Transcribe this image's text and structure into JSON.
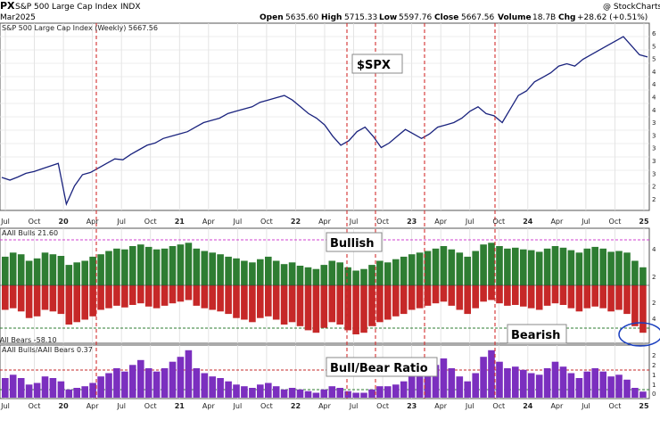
{
  "header": {
    "symbol": "PX",
    "name": "S&P 500 Large Cap Index",
    "exchange": "INDX",
    "date": "Mar2025",
    "open_label": "Open",
    "open": "5635.60",
    "high_label": "High",
    "high": "5715.33",
    "low_label": "Low",
    "low": "5597.76",
    "close_label": "Close",
    "close": "5667.56",
    "volume_label": "Volume",
    "volume": "18.7B",
    "chg_label": "Chg",
    "chg": "+28.62 (+0.51%)",
    "source": "@ StockCharts.com"
  },
  "chart_data": [
    {
      "type": "line",
      "panel_label": "S&P 500 Large Cap Index (Weekly) 5667.56",
      "callout": "$SPX",
      "x_ticks": [
        "Jul",
        "Oct",
        "20",
        "Apr",
        "Jul",
        "Oct",
        "21",
        "Apr",
        "Jul",
        "Oct",
        "22",
        "Apr",
        "Jul",
        "Oct",
        "23",
        "Apr",
        "Jul",
        "Oct",
        "24",
        "Apr",
        "Jul",
        "Oct",
        "25"
      ],
      "y_right_ticks": [
        "6",
        "5",
        "5",
        "4",
        "4",
        "4",
        "4",
        "3",
        "3",
        "3",
        "3",
        "3",
        "2",
        "2"
      ],
      "color": "#1a237e",
      "series": [
        {
          "values": [
            2990,
            2930,
            3000,
            3080,
            3120,
            3180,
            3240,
            3300,
            2400,
            2800,
            3050,
            3100,
            3200,
            3300,
            3400,
            3380,
            3500,
            3600,
            3700,
            3750,
            3850,
            3900,
            3950,
            4000,
            4100,
            4200,
            4250,
            4300,
            4400,
            4450,
            4500,
            4550,
            4650,
            4700,
            4750,
            4800,
            4700,
            4550,
            4400,
            4300,
            4150,
            3900,
            3700,
            3800,
            4000,
            4100,
            3900,
            3650,
            3750,
            3900,
            4050,
            3950,
            3850,
            3950,
            4100,
            4150,
            4200,
            4300,
            4450,
            4550,
            4400,
            4350,
            4200,
            4500,
            4800,
            4900,
            5100,
            5200,
            5300,
            5450,
            5500,
            5450,
            5600,
            5700,
            5800,
            5900,
            6000,
            6100,
            5900,
            5700,
            5650
          ]
        }
      ]
    },
    {
      "type": "bar",
      "panel_label": "AAII Bulls 21.60",
      "panel_label_bottom": "AAII Bears -58.10",
      "callout_top": "Bullish",
      "callout_bottom": "Bearish",
      "bull_color": "#2e7d32",
      "bear_color": "#c62828",
      "y_right_ticks": [
        "4",
        "2",
        "2",
        "4"
      ],
      "series": [
        {
          "name": "AAII Bulls",
          "values": [
            35,
            40,
            38,
            30,
            33,
            40,
            38,
            36,
            25,
            28,
            30,
            35,
            38,
            42,
            45,
            44,
            48,
            50,
            47,
            44,
            45,
            48,
            50,
            52,
            45,
            42,
            40,
            38,
            35,
            33,
            30,
            28,
            32,
            35,
            30,
            26,
            28,
            24,
            22,
            20,
            25,
            30,
            28,
            22,
            18,
            20,
            25,
            30,
            28,
            32,
            35,
            38,
            40,
            42,
            45,
            48,
            44,
            40,
            35,
            42,
            50,
            52,
            48,
            45,
            46,
            44,
            43,
            41,
            45,
            48,
            46,
            43,
            40,
            45,
            47,
            45,
            41,
            42,
            40,
            30,
            22
          ]
        },
        {
          "name": "AAII Bears",
          "values": [
            -30,
            -28,
            -32,
            -40,
            -38,
            -30,
            -32,
            -35,
            -48,
            -45,
            -42,
            -38,
            -30,
            -28,
            -25,
            -27,
            -24,
            -22,
            -26,
            -28,
            -25,
            -22,
            -20,
            -18,
            -25,
            -28,
            -30,
            -32,
            -35,
            -40,
            -42,
            -45,
            -40,
            -38,
            -42,
            -48,
            -45,
            -50,
            -55,
            -58,
            -52,
            -45,
            -48,
            -55,
            -60,
            -58,
            -50,
            -45,
            -42,
            -38,
            -35,
            -30,
            -28,
            -25,
            -22,
            -20,
            -25,
            -30,
            -35,
            -28,
            -20,
            -18,
            -22,
            -25,
            -24,
            -26,
            -28,
            -30,
            -25,
            -22,
            -24,
            -28,
            -32,
            -28,
            -26,
            -28,
            -32,
            -30,
            -35,
            -50,
            -58
          ]
        }
      ]
    },
    {
      "type": "bar",
      "panel_label": "AAII Bulls/AAII Bears 0.37",
      "callout": "Bull/Bear Ratio",
      "color": "#7b2fbf",
      "y_right_ticks": [
        "2",
        "2",
        "1",
        "1",
        "0"
      ],
      "x_ticks": [
        "Jul",
        "Oct",
        "20",
        "Apr",
        "Jul",
        "Oct",
        "21",
        "Apr",
        "Jul",
        "Oct",
        "22",
        "Apr",
        "Jul",
        "Oct",
        "23",
        "Apr",
        "Jul",
        "Oct",
        "24",
        "Apr",
        "Jul",
        "Oct",
        "25"
      ],
      "series": [
        {
          "name": "AAII Bulls/AAII Bears",
          "values": [
            1.2,
            1.4,
            1.2,
            0.8,
            0.9,
            1.3,
            1.2,
            1.0,
            0.5,
            0.6,
            0.7,
            0.9,
            1.3,
            1.5,
            1.8,
            1.6,
            2.0,
            2.3,
            1.8,
            1.6,
            1.8,
            2.2,
            2.5,
            2.9,
            1.8,
            1.5,
            1.3,
            1.2,
            1.0,
            0.8,
            0.7,
            0.6,
            0.8,
            0.9,
            0.7,
            0.5,
            0.6,
            0.5,
            0.4,
            0.3,
            0.5,
            0.7,
            0.6,
            0.4,
            0.3,
            0.3,
            0.5,
            0.7,
            0.7,
            0.8,
            1.0,
            1.3,
            1.4,
            1.7,
            2.0,
            2.4,
            1.8,
            1.3,
            1.0,
            1.5,
            2.5,
            2.9,
            2.2,
            1.8,
            1.9,
            1.7,
            1.5,
            1.4,
            1.8,
            2.2,
            1.9,
            1.5,
            1.2,
            1.6,
            1.8,
            1.6,
            1.3,
            1.4,
            1.1,
            0.6,
            0.37
          ]
        }
      ]
    }
  ]
}
